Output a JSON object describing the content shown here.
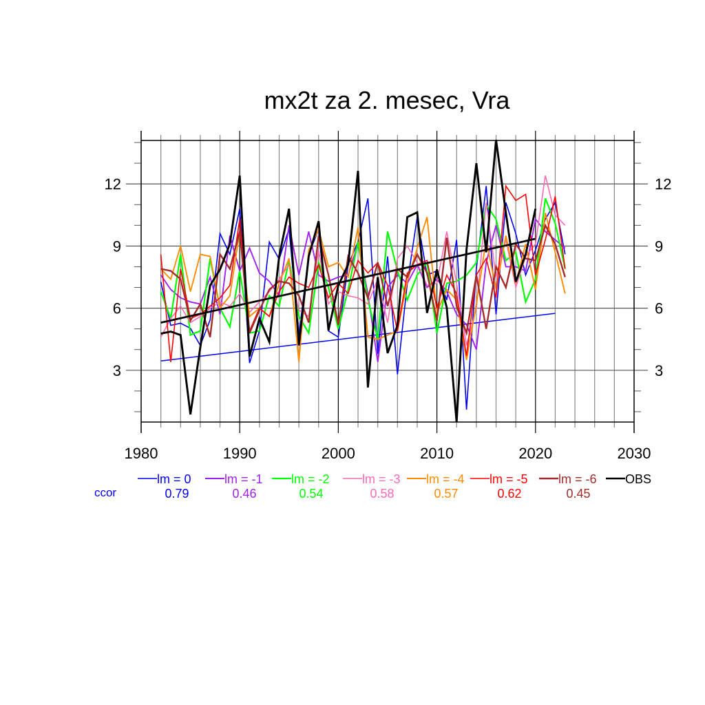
{
  "chart_data": {
    "type": "line",
    "title": "mx2t za 2. mesec, Vra",
    "xlabel": "",
    "ylabel": "",
    "xlim": [
      1980,
      2030
    ],
    "ylim": [
      0.5,
      14.1
    ],
    "x_ticks": [
      "1980",
      "1990",
      "2000",
      "2010",
      "2020",
      "2030"
    ],
    "x_tick_values": [
      1980,
      1990,
      2000,
      2010,
      2020,
      2030
    ],
    "y_ticks": [
      "3",
      "6",
      "9",
      "12"
    ],
    "y_tick_values": [
      3,
      6,
      9,
      12
    ],
    "grid": true,
    "legend_position": "bottom",
    "ccor_label": "ccor",
    "series": [
      {
        "name": "lm = 0",
        "color": "#0000ee",
        "ccor": "0.79",
        "width": 1.6,
        "x_start": 1982,
        "values": [
          7.27,
          5.17,
          5.27,
          5.03,
          4.2,
          5.43,
          9.6,
          8.6,
          10.8,
          3.35,
          4.9,
          9.2,
          8.37,
          9.83,
          4.7,
          8.6,
          9.8,
          4.9,
          4.6,
          8.1,
          9.2,
          11.3,
          3.8,
          8.5,
          2.8,
          7.2,
          10.4,
          7.6,
          7.8,
          6.4,
          9.3,
          1.1,
          7.9,
          11.9,
          5.7,
          11.1,
          9.6,
          7.6,
          8.8,
          10.3,
          11.1,
          8.6
        ]
      },
      {
        "name": "lm = -1",
        "color": "#a020f0",
        "ccor": "0.46",
        "width": 1.9,
        "x_start": 1982,
        "values": [
          7.6,
          6.9,
          6.5,
          6.3,
          6.2,
          7.5,
          5.7,
          9.5,
          7.8,
          8.9,
          7.7,
          7.3,
          6.6,
          10.0,
          7.6,
          9.7,
          7.6,
          7.3,
          7.5,
          7.6,
          9.1,
          6.7,
          3.4,
          7.0,
          7.6,
          7.2,
          8.1,
          7.0,
          7.4,
          6.8,
          5.7,
          5.2,
          4.0,
          8.2,
          10.0,
          8.0,
          8.0,
          7.8,
          10.3,
          9.7,
          9.3,
          8.9
        ]
      },
      {
        "name": "lm = -2",
        "color": "#00ff00",
        "ccor": "0.54",
        "width": 2.2,
        "x_start": 1982,
        "values": [
          6.8,
          5.5,
          8.6,
          4.7,
          4.9,
          8.4,
          6.0,
          5.1,
          7.8,
          4.8,
          4.9,
          6.6,
          6.1,
          8.3,
          5.6,
          4.8,
          8.2,
          7.0,
          5.0,
          6.9,
          9.2,
          6.4,
          4.5,
          9.7,
          7.8,
          6.4,
          7.6,
          8.2,
          4.8,
          7.2,
          7.3,
          7.6,
          8.2,
          11.0,
          10.3,
          8.3,
          8.7,
          6.3,
          7.4,
          11.3,
          10.1,
          7.9
        ]
      },
      {
        "name": "lm = -3",
        "color": "#ff69b4",
        "ccor": "0.58",
        "width": 1.6,
        "x_start": 1982,
        "values": [
          4.6,
          5.5,
          6.1,
          5.3,
          5.6,
          6.0,
          6.3,
          6.1,
          6.7,
          5.8,
          6.3,
          6.8,
          7.4,
          8.1,
          5.9,
          5.6,
          8.8,
          6.2,
          6.8,
          6.6,
          6.5,
          6.2,
          7.4,
          5.3,
          8.4,
          9.0,
          8.2,
          7.1,
          7.2,
          9.7,
          7.2,
          4.2,
          6.0,
          11.1,
          7.5,
          9.3,
          7.0,
          8.5,
          9.1,
          12.4,
          10.5,
          10.0
        ]
      },
      {
        "name": "lm = -4",
        "color": "#ff8c00",
        "ccor": "0.57",
        "width": 1.9,
        "x_start": 1982,
        "values": [
          7.9,
          7.4,
          9.0,
          6.8,
          8.6,
          8.5,
          6.0,
          6.6,
          9.7,
          5.6,
          6.0,
          5.6,
          7.2,
          8.4,
          3.4,
          8.8,
          9.8,
          8.0,
          8.2,
          7.5,
          9.9,
          4.6,
          4.5,
          4.7,
          4.9,
          7.3,
          8.9,
          10.4,
          5.8,
          6.9,
          6.4,
          3.5,
          6.2,
          9.3,
          6.9,
          9.5,
          7.2,
          9.1,
          6.9,
          10.6,
          8.7,
          6.7
        ]
      },
      {
        "name": "lm = -5",
        "color": "#ff0000",
        "ccor": "0.62",
        "width": 1.6,
        "x_start": 1982,
        "values": [
          8.6,
          3.4,
          7.9,
          5.5,
          5.7,
          6.1,
          6.5,
          7.1,
          10.3,
          4.9,
          6.0,
          5.6,
          6.8,
          7.5,
          7.2,
          7.0,
          8.1,
          6.5,
          7.2,
          6.7,
          8.3,
          7.7,
          8.2,
          7.1,
          4.9,
          7.7,
          8.1,
          8.3,
          6.0,
          7.6,
          6.7,
          3.7,
          7.6,
          8.4,
          6.5,
          11.9,
          11.2,
          11.5,
          7.6,
          9.3,
          11.4,
          7.9
        ]
      },
      {
        "name": "lm = -6",
        "color": "#a52a2a",
        "ccor": "0.45",
        "width": 2.4,
        "x_start": 1982,
        "values": [
          7.9,
          7.8,
          7.4,
          5.4,
          6.2,
          4.6,
          8.6,
          7.9,
          9.7,
          4.8,
          5.9,
          6.9,
          7.3,
          7.2,
          6.6,
          5.3,
          9.5,
          7.6,
          5.2,
          8.5,
          7.7,
          6.5,
          8.2,
          6.1,
          7.9,
          7.5,
          8.6,
          7.7,
          5.4,
          9.4,
          6.1,
          4.8,
          7.6,
          5.0,
          8.0,
          7.0,
          9.1,
          8.4,
          8.3,
          10.0,
          9.1,
          7.5
        ]
      },
      {
        "name": "OBS",
        "color": "#000000",
        "ccor": "",
        "width": 2.9,
        "x_start": 1982,
        "values": [
          4.77,
          4.87,
          4.7,
          0.87,
          4.1,
          7.1,
          7.87,
          9.1,
          12.4,
          3.67,
          5.5,
          4.37,
          8.5,
          10.8,
          4.2,
          8.5,
          10.2,
          4.93,
          7.1,
          8.1,
          12.63,
          2.17,
          7.5,
          3.83,
          5.17,
          10.4,
          10.63,
          5.77,
          7.87,
          6.03,
          0.5,
          8.83,
          13.0,
          8.7,
          14.13,
          10.6,
          7.27,
          8.6,
          10.8
        ]
      }
    ],
    "trend_lines": [
      {
        "name": "OBS trend",
        "color": "#000000",
        "x": [
          1982,
          2020
        ],
        "y": [
          5.3,
          9.35
        ],
        "width": 2.6
      },
      {
        "name": "lm = 0 trend",
        "color": "#0000ee",
        "x": [
          1982,
          2022
        ],
        "y": [
          3.45,
          5.75
        ],
        "width": 1.5
      }
    ]
  }
}
